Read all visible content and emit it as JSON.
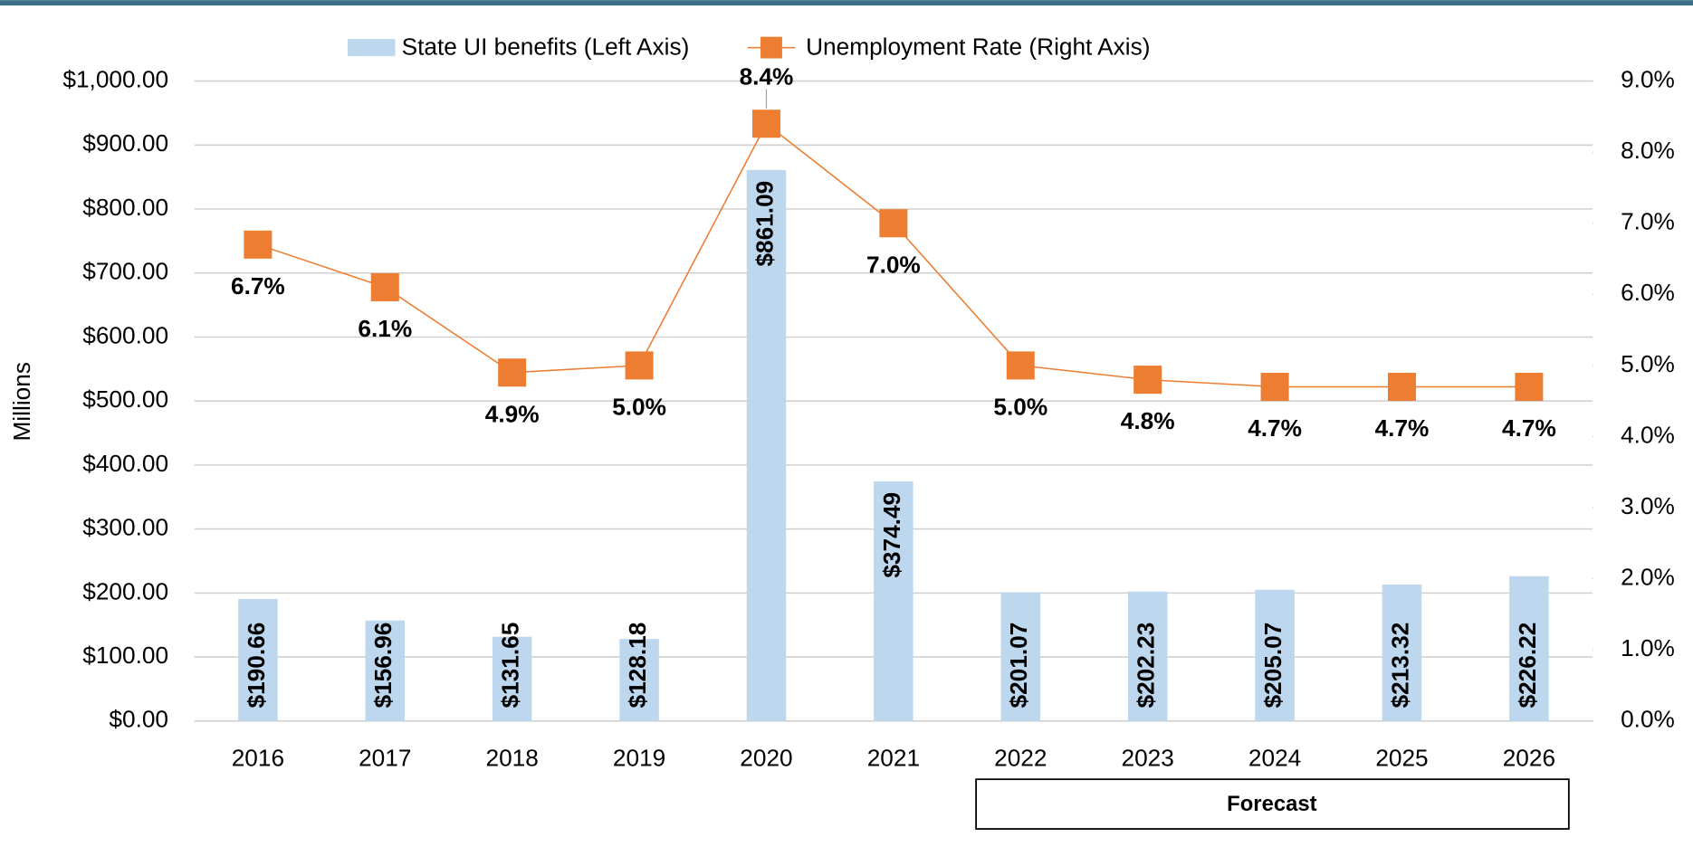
{
  "chart_data": {
    "type": "bar-line",
    "y_label": "Millions",
    "annotation": "Forecast",
    "categories": [
      "2016",
      "2017",
      "2018",
      "2019",
      "2020",
      "2021",
      "2022",
      "2023",
      "2024",
      "2025",
      "2026"
    ],
    "series": [
      {
        "name": "State UI benefits (Left Axis)",
        "type": "bar",
        "color": "#bdd7ee",
        "values": [
          190.66,
          156.96,
          131.65,
          128.18,
          861.09,
          374.49,
          201.07,
          202.23,
          205.07,
          213.32,
          226.22
        ],
        "value_labels": [
          "$190.66",
          "$156.96",
          "$131.65",
          "$128.18",
          "$861.09",
          "$374.49",
          "$201.07",
          "$202.23",
          "$205.07",
          "$213.32",
          "$226.22"
        ]
      },
      {
        "name": "Unemployment Rate (Right Axis)",
        "type": "line",
        "axis": "y2",
        "color": "#ed7d31",
        "label_color": "#d0692a",
        "values": [
          6.7,
          6.1,
          4.9,
          5.0,
          8.4,
          7.0,
          5.0,
          4.8,
          4.7,
          4.7,
          4.7
        ],
        "value_labels": [
          "6.7%",
          "6.1%",
          "4.9%",
          "5.0%",
          "8.4%",
          "7.0%",
          "5.0%",
          "4.8%",
          "4.7%",
          "4.7%",
          "4.7%"
        ]
      }
    ],
    "ylim": [
      0,
      1000
    ],
    "yticks": [
      {
        "value": 0,
        "label": "$0.00"
      },
      {
        "value": 100,
        "label": "$100.00"
      },
      {
        "value": 200,
        "label": "$200.00"
      },
      {
        "value": 300,
        "label": "$300.00"
      },
      {
        "value": 400,
        "label": "$400.00"
      },
      {
        "value": 500,
        "label": "$500.00"
      },
      {
        "value": 600,
        "label": "$600.00"
      },
      {
        "value": 700,
        "label": "$700.00"
      },
      {
        "value": 800,
        "label": "$800.00"
      },
      {
        "value": 900,
        "label": "$900.00"
      },
      {
        "value": 1000,
        "label": "$1,000.00"
      }
    ],
    "y2lim": [
      0,
      9
    ],
    "y2ticks": [
      {
        "value": 0,
        "label": "0.0%"
      },
      {
        "value": 1,
        "label": "1.0%"
      },
      {
        "value": 2,
        "label": "2.0%"
      },
      {
        "value": 3,
        "label": "3.0%"
      },
      {
        "value": 4,
        "label": "4.0%"
      },
      {
        "value": 5,
        "label": "5.0%"
      },
      {
        "value": 6,
        "label": "6.0%"
      },
      {
        "value": 7,
        "label": "7.0%"
      },
      {
        "value": 8,
        "label": "8.0%"
      },
      {
        "value": 9,
        "label": "9.0%"
      }
    ],
    "grid": true
  }
}
